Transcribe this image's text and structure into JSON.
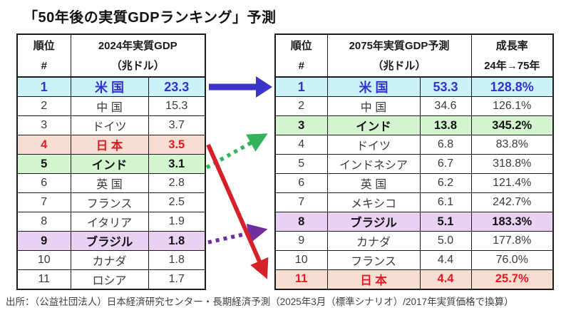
{
  "title": "「50年後の実質GDPランキング」予測",
  "footer": "出所：（公益社団法人）日本経済研究センター・長期経済予測（2025年3月（標準シナリオ）/2017年実質価格で換算）",
  "colors": {
    "us_bg": "#caf2f8",
    "us_text": "#3333cc",
    "japan_bg": "#f8ded2",
    "japan_text": "#df1b24",
    "india_bg": "#d2f5d0",
    "brazil_bg": "#e9d1f3",
    "arrow_blue": "#3a35c8",
    "arrow_green": "#33b35c",
    "arrow_red": "#d6202a",
    "arrow_purple": "#6f2da0",
    "border": "#1b1b1b"
  },
  "chart_data": {
    "type": "table",
    "tables": [
      {
        "id": "gdp-2024",
        "header": {
          "rank_top": "順位",
          "rank_bottom": "#",
          "gdp_top": "2024年実質GDP",
          "gdp_bottom": "（兆ドル）"
        },
        "rows": [
          {
            "rank": "1",
            "country": "米 国",
            "value": "23.3",
            "highlight": "us"
          },
          {
            "rank": "2",
            "country": "中 国",
            "value": "15.3",
            "highlight": ""
          },
          {
            "rank": "3",
            "country": "ドイツ",
            "value": "3.7",
            "highlight": ""
          },
          {
            "rank": "4",
            "country": "日 本",
            "value": "3.5",
            "highlight": "japan"
          },
          {
            "rank": "5",
            "country": "インド",
            "value": "3.1",
            "highlight": "india"
          },
          {
            "rank": "6",
            "country": "英 国",
            "value": "2.8",
            "highlight": ""
          },
          {
            "rank": "7",
            "country": "フランス",
            "value": "2.5",
            "highlight": ""
          },
          {
            "rank": "8",
            "country": "イタリア",
            "value": "1.9",
            "highlight": ""
          },
          {
            "rank": "9",
            "country": "ブラジル",
            "value": "1.8",
            "highlight": "brazil"
          },
          {
            "rank": "10",
            "country": "カナダ",
            "value": "1.8",
            "highlight": ""
          },
          {
            "rank": "11",
            "country": "ロシア",
            "value": "1.7",
            "highlight": ""
          }
        ]
      },
      {
        "id": "gdp-2075",
        "header": {
          "rank_top": "順位",
          "rank_bottom": "#",
          "gdp_top": "2075年実質GDP予測",
          "gdp_bottom": "（兆ドル）",
          "growth_top": "成長率",
          "growth_bottom": "24年→75年"
        },
        "rows": [
          {
            "rank": "1",
            "country": "米 国",
            "value": "53.3",
            "growth": "128.8%",
            "highlight": "us"
          },
          {
            "rank": "2",
            "country": "中 国",
            "value": "34.6",
            "growth": "126.1%",
            "highlight": ""
          },
          {
            "rank": "3",
            "country": "インド",
            "value": "13.8",
            "growth": "345.2%",
            "highlight": "india"
          },
          {
            "rank": "4",
            "country": "ドイツ",
            "value": "6.8",
            "growth": "83.8%",
            "highlight": ""
          },
          {
            "rank": "5",
            "country": "インドネシア",
            "value": "6.7",
            "growth": "318.8%",
            "highlight": ""
          },
          {
            "rank": "6",
            "country": "英 国",
            "value": "6.2",
            "growth": "121.4%",
            "highlight": ""
          },
          {
            "rank": "7",
            "country": "メキシコ",
            "value": "6.1",
            "growth": "242.7%",
            "highlight": ""
          },
          {
            "rank": "8",
            "country": "ブラジル",
            "value": "5.1",
            "growth": "183.3%",
            "highlight": "brazil"
          },
          {
            "rank": "9",
            "country": "カナダ",
            "value": "5.0",
            "growth": "177.8%",
            "highlight": ""
          },
          {
            "rank": "10",
            "country": "フランス",
            "value": "4.4",
            "growth": "76.0%",
            "highlight": ""
          },
          {
            "rank": "11",
            "country": "日 本",
            "value": "4.4",
            "growth": "25.7%",
            "highlight": "japan"
          }
        ]
      }
    ]
  },
  "arrows": [
    {
      "id": "blue",
      "meaning": "米国 2024年1位 → 2075年1位",
      "style": "solid thick"
    },
    {
      "id": "green",
      "meaning": "インド 2024年5位 → 2075年3位",
      "style": "dotted"
    },
    {
      "id": "red",
      "meaning": "日本 2024年4位 → 2075年11位",
      "style": "solid"
    },
    {
      "id": "purple",
      "meaning": "ブラジル 2024年9位 → 2075年8位",
      "style": "dotted"
    }
  ]
}
